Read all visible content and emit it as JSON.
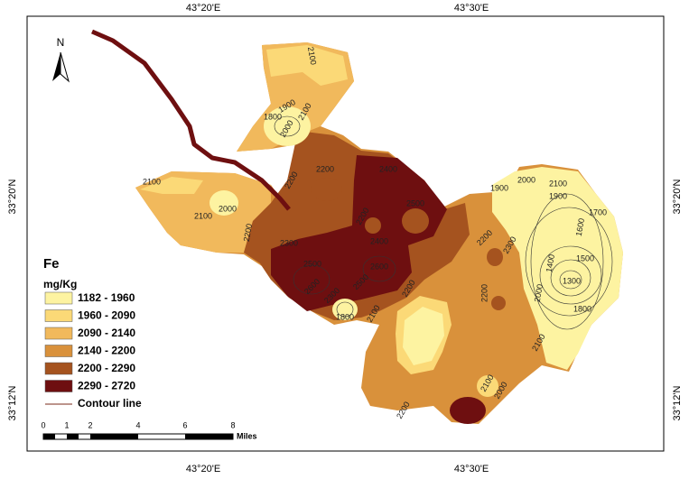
{
  "map": {
    "north_label": "N",
    "longitude_labels": [
      "43°20'E",
      "43°30'E"
    ],
    "latitude_labels": [
      "33°20'N",
      "33°12'N"
    ],
    "legend": {
      "title": "Fe",
      "unit": "mg/Kg",
      "classes": [
        {
          "label": "1182 - 1960",
          "color": "#fdf3a1"
        },
        {
          "label": "1960 - 2090",
          "color": "#fbd977"
        },
        {
          "label": "2090 - 2140",
          "color": "#f1b95c"
        },
        {
          "label": "2140 - 2200",
          "color": "#d9913b"
        },
        {
          "label": "2200 - 2290",
          "color": "#a5531f"
        },
        {
          "label": "2290 - 2720",
          "color": "#6e0f10"
        }
      ],
      "contour_label": "Contour line",
      "contour_color": "#7a2a1a"
    },
    "scale_bar": {
      "ticks": [
        "0",
        "1",
        "2",
        "4",
        "6",
        "8"
      ],
      "unit": "Miles"
    },
    "contour_labels": [
      "2100",
      "1900",
      "1800",
      "2000",
      "2100",
      "2200",
      "2400",
      "2500",
      "2200",
      "2100",
      "2000",
      "2100",
      "2200",
      "2300",
      "2400",
      "2500",
      "2600",
      "2600",
      "2500",
      "2300",
      "2200",
      "1800",
      "2100",
      "1900",
      "2000",
      "2100",
      "1900",
      "1700",
      "1600",
      "2200",
      "2300",
      "1400",
      "1500",
      "1300",
      "1800",
      "2000",
      "2200",
      "2100",
      "2100",
      "2000",
      "2200",
      "2200"
    ]
  }
}
